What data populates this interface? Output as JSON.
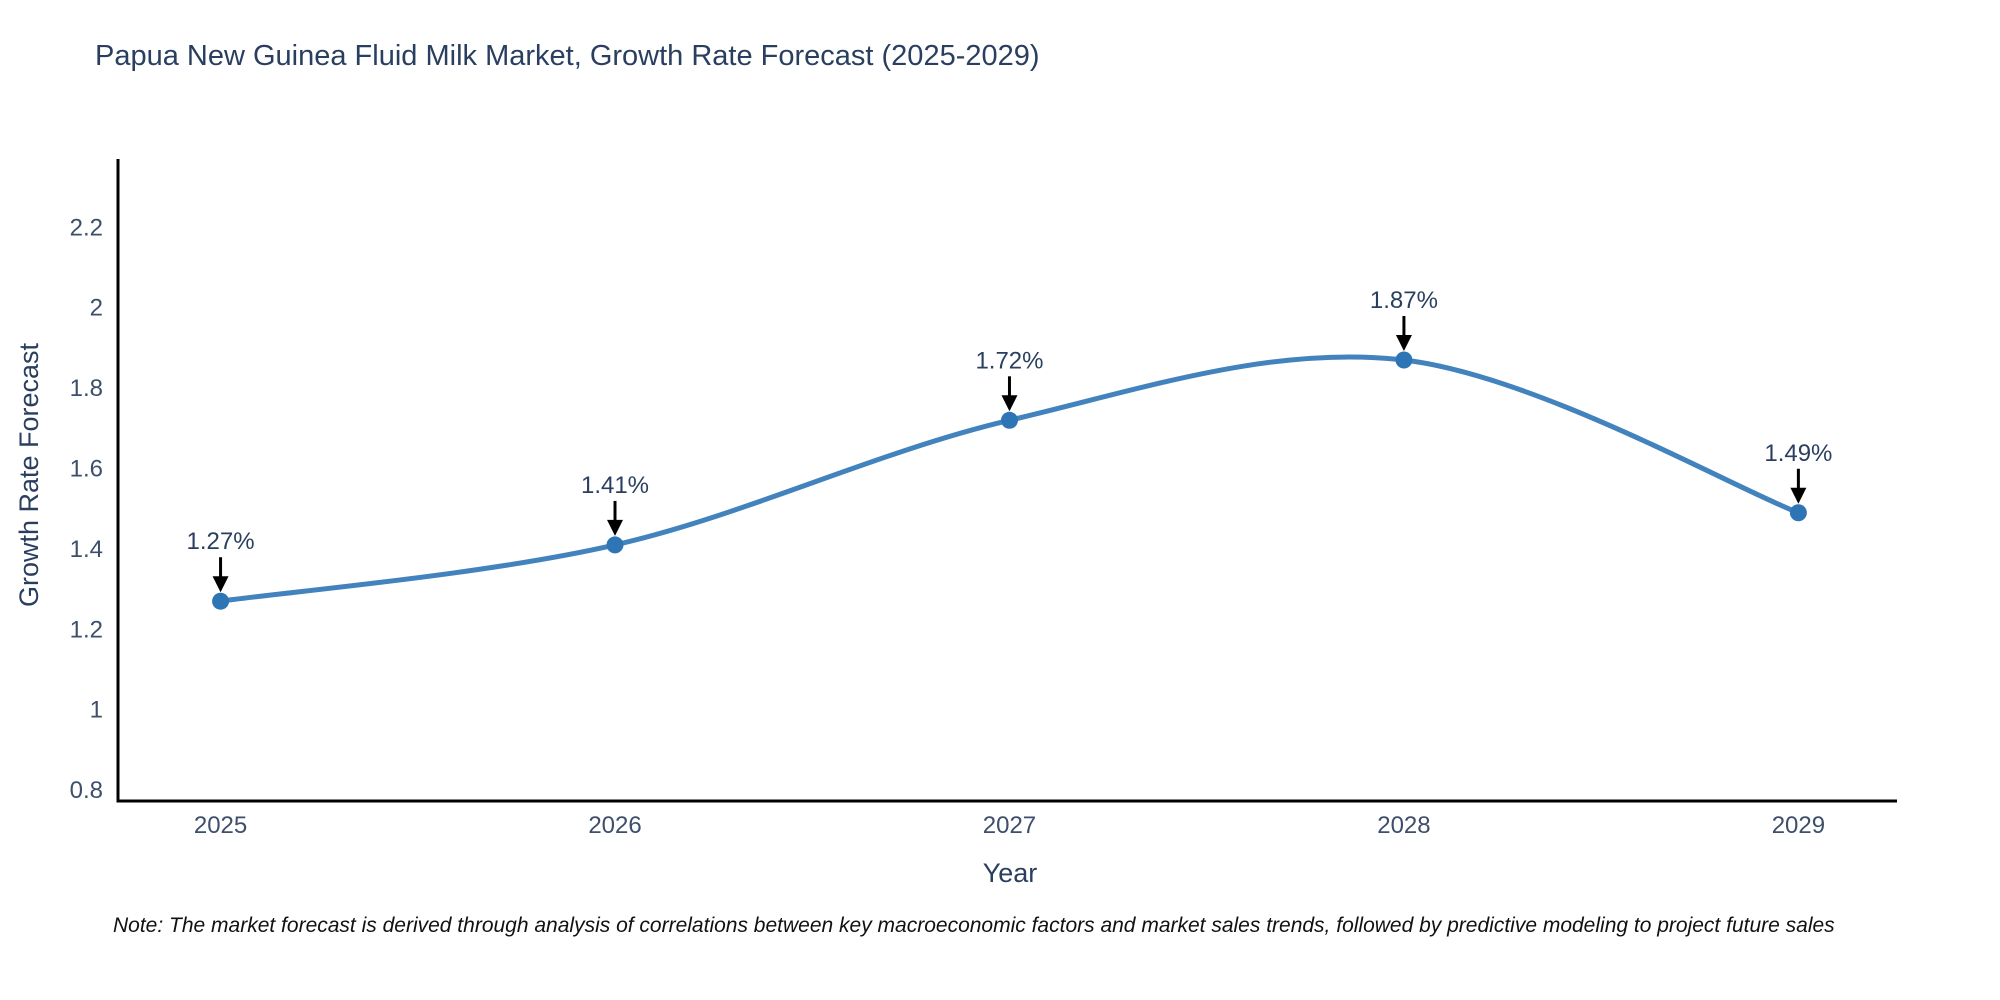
{
  "title": "Papua New Guinea Fluid Milk Market, Growth Rate Forecast (2025-2029)",
  "note": "Note: The market forecast is derived through analysis of correlations between key macroeconomic factors and market sales trends, followed by predictive modeling to project future sales",
  "chart_data": {
    "type": "line",
    "line_shape": "spline",
    "title": "Papua New Guinea Fluid Milk Market, Growth Rate Forecast (2025-2029)",
    "xlabel": "Year",
    "ylabel": "Growth Rate Forecast",
    "x": [
      2025,
      2026,
      2027,
      2028,
      2029
    ],
    "y": [
      1.27,
      1.41,
      1.72,
      1.87,
      1.49
    ],
    "point_labels": [
      "1.27%",
      "1.41%",
      "1.72%",
      "1.87%",
      "1.49%"
    ],
    "x_ticks": [
      "2025",
      "2026",
      "2027",
      "2028",
      "2029"
    ],
    "y_ticks": [
      "0.8",
      "1",
      "1.2",
      "1.4",
      "1.6",
      "1.8",
      "2",
      "2.2"
    ],
    "xlim": [
      2024.74,
      2029.25
    ],
    "ylim": [
      0.773,
      2.37
    ],
    "grid": false,
    "legend": "none",
    "colors": {
      "line": "#4383bd",
      "marker": "#2e75b5",
      "axis": "#000000",
      "arrow": "#000000",
      "text": "#2a3f5f",
      "tick_text": "#3d4f6b"
    }
  }
}
